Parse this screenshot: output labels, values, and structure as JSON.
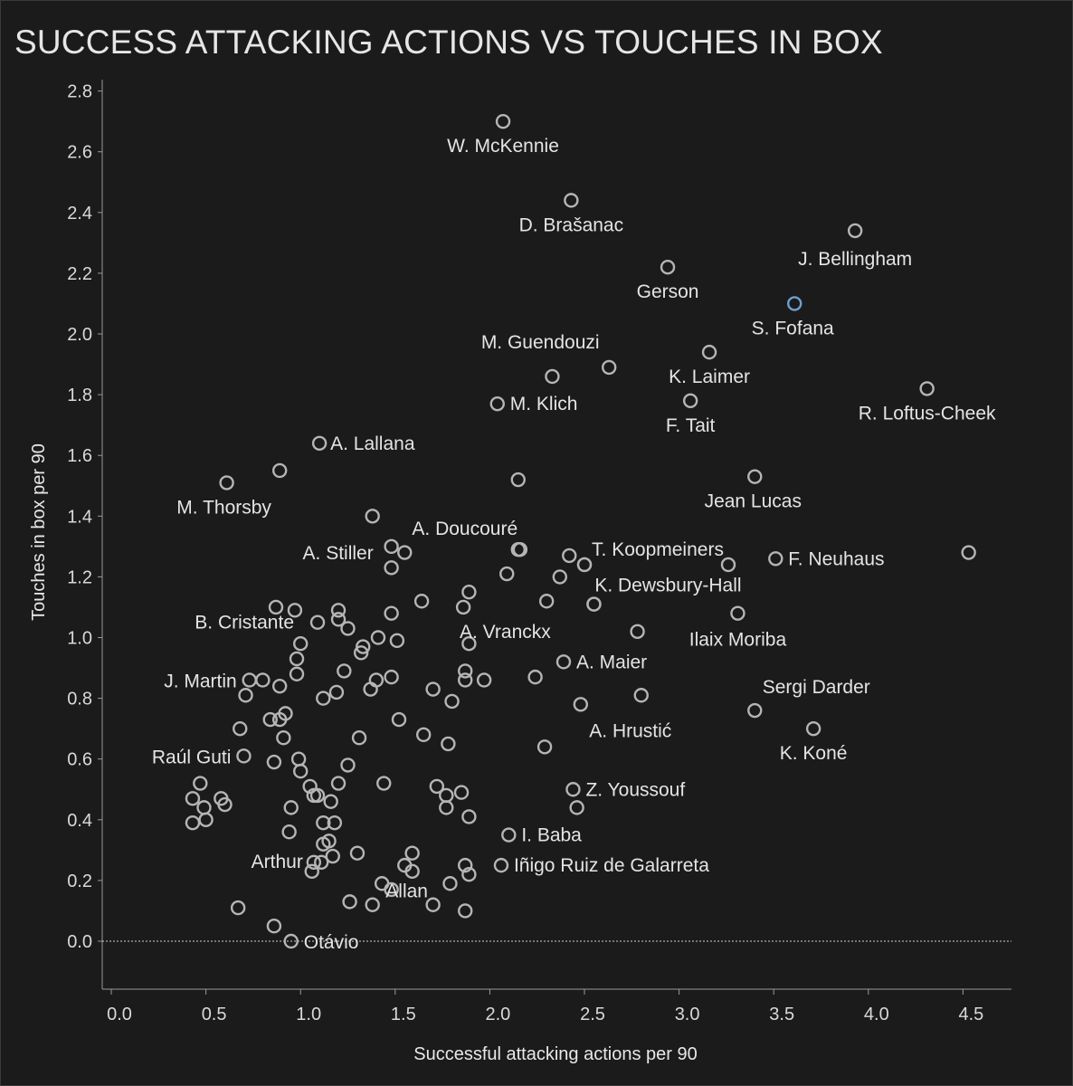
{
  "chart_data": {
    "type": "scatter",
    "title": "SUCCESS ATTACKING ACTIONS VS TOUCHES IN BOX",
    "xlabel": "Successful attacking actions per 90",
    "ylabel": "Touches in box per 90",
    "xlim": [
      -0.05,
      4.75
    ],
    "ylim": [
      -0.16,
      2.86
    ],
    "xticks": [
      "0.0",
      "0.5",
      "1.0",
      "1.5",
      "2.0",
      "2.5",
      "3.0",
      "3.5",
      "4.0",
      "4.5"
    ],
    "yticks": [
      "0.0",
      "0.2",
      "0.4",
      "0.6",
      "0.8",
      "1.0",
      "1.2",
      "1.4",
      "1.6",
      "1.8",
      "2.0",
      "2.2",
      "2.4",
      "2.6",
      "2.8"
    ],
    "reference_line": {
      "y": 0.0,
      "style": "dotted"
    },
    "colors": {
      "point": "#b5b5b5",
      "highlight": "#6f9ed2",
      "background": "#1b1b1b",
      "text": "#e4e4e4"
    },
    "labeled_points": [
      {
        "name": "W. McKennie",
        "x": 2.07,
        "y": 2.7
      },
      {
        "name": "D. Brašanac",
        "x": 2.43,
        "y": 2.44
      },
      {
        "name": "J. Bellingham",
        "x": 3.93,
        "y": 2.34
      },
      {
        "name": "Gerson",
        "x": 2.94,
        "y": 2.22
      },
      {
        "name": "S. Fofana",
        "x": 3.61,
        "y": 2.1,
        "highlight": true
      },
      {
        "name": "M. Guendouzi",
        "x": 2.63,
        "y": 1.89
      },
      {
        "name": "K. Laimer",
        "x": 3.16,
        "y": 1.94
      },
      {
        "name": "R. Loftus-Cheek",
        "x": 4.31,
        "y": 1.82
      },
      {
        "name": "M. Klich",
        "x": 2.04,
        "y": 1.77
      },
      {
        "name": "F. Tait",
        "x": 3.06,
        "y": 1.78
      },
      {
        "name": "A. Lallana",
        "x": 1.1,
        "y": 1.64
      },
      {
        "name": "M. Thorsby",
        "x": 0.61,
        "y": 1.51
      },
      {
        "name": "Jean Lucas",
        "x": 3.4,
        "y": 1.53
      },
      {
        "name": "A. Doucouré",
        "x": 2.15,
        "y": 1.29
      },
      {
        "name": "A. Stiller",
        "x": 1.48,
        "y": 1.3
      },
      {
        "name": "T. Koopmeiners",
        "x": 2.5,
        "y": 1.24
      },
      {
        "name": "F. Neuhaus",
        "x": 3.51,
        "y": 1.26
      },
      {
        "name": "K. Dewsbury-Hall",
        "x": 2.55,
        "y": 1.11
      },
      {
        "name": "A. Vranckx",
        "x": 1.89,
        "y": 0.98
      },
      {
        "name": "Ilaix Moriba",
        "x": 3.31,
        "y": 1.08
      },
      {
        "name": "B. Cristante",
        "x": 1.09,
        "y": 1.05
      },
      {
        "name": "A. Maier",
        "x": 2.39,
        "y": 0.92
      },
      {
        "name": "J. Martin",
        "x": 0.73,
        "y": 0.86
      },
      {
        "name": "Sergi Darder",
        "x": 3.4,
        "y": 0.76
      },
      {
        "name": "A. Hrustić",
        "x": 2.48,
        "y": 0.78
      },
      {
        "name": "K. Koné",
        "x": 3.71,
        "y": 0.7
      },
      {
        "name": "Raúl Guti",
        "x": 0.7,
        "y": 0.61
      },
      {
        "name": "Z. Youssouf",
        "x": 2.44,
        "y": 0.5
      },
      {
        "name": "I. Baba",
        "x": 2.1,
        "y": 0.35
      },
      {
        "name": "Arthur",
        "x": 1.07,
        "y": 0.26
      },
      {
        "name": "Iñigo Ruiz de Galarreta",
        "x": 2.06,
        "y": 0.25
      },
      {
        "name": "Allan",
        "x": 1.59,
        "y": 0.29
      },
      {
        "name": "Otávio",
        "x": 0.95,
        "y": 0.0
      }
    ],
    "unlabeled_points": [
      [
        4.53,
        1.28
      ],
      [
        2.15,
        1.52
      ],
      [
        0.89,
        1.55
      ],
      [
        1.38,
        1.4
      ],
      [
        2.33,
        1.86
      ],
      [
        1.48,
        1.23
      ],
      [
        1.55,
        1.28
      ],
      [
        2.16,
        1.29
      ],
      [
        2.42,
        1.27
      ],
      [
        2.09,
        1.21
      ],
      [
        2.37,
        1.2
      ],
      [
        2.5,
        1.24
      ],
      [
        3.26,
        1.24
      ],
      [
        1.64,
        1.12
      ],
      [
        1.86,
        1.1
      ],
      [
        1.89,
        1.15
      ],
      [
        2.3,
        1.12
      ],
      [
        2.55,
        1.11
      ],
      [
        0.87,
        1.1
      ],
      [
        0.97,
        1.09
      ],
      [
        1.2,
        1.09
      ],
      [
        1.2,
        1.06
      ],
      [
        1.25,
        1.03
      ],
      [
        1.48,
        1.08
      ],
      [
        2.78,
        1.02
      ],
      [
        1.41,
        1.0
      ],
      [
        1.51,
        0.99
      ],
      [
        1.0,
        0.98
      ],
      [
        1.33,
        0.97
      ],
      [
        1.32,
        0.95
      ],
      [
        0.98,
        0.93
      ],
      [
        1.23,
        0.89
      ],
      [
        0.98,
        0.88
      ],
      [
        1.4,
        0.86
      ],
      [
        1.48,
        0.87
      ],
      [
        1.37,
        0.83
      ],
      [
        1.19,
        0.82
      ],
      [
        1.12,
        0.8
      ],
      [
        0.89,
        0.84
      ],
      [
        0.8,
        0.86
      ],
      [
        0.71,
        0.81
      ],
      [
        1.7,
        0.83
      ],
      [
        1.87,
        0.89
      ],
      [
        1.87,
        0.86
      ],
      [
        1.97,
        0.86
      ],
      [
        2.24,
        0.87
      ],
      [
        1.8,
        0.79
      ],
      [
        2.8,
        0.81
      ],
      [
        0.84,
        0.73
      ],
      [
        0.89,
        0.73
      ],
      [
        0.92,
        0.75
      ],
      [
        0.68,
        0.7
      ],
      [
        1.52,
        0.73
      ],
      [
        0.91,
        0.67
      ],
      [
        1.31,
        0.67
      ],
      [
        1.65,
        0.68
      ],
      [
        1.78,
        0.65
      ],
      [
        2.29,
        0.64
      ],
      [
        0.86,
        0.59
      ],
      [
        0.99,
        0.6
      ],
      [
        1.0,
        0.56
      ],
      [
        1.25,
        0.58
      ],
      [
        0.47,
        0.52
      ],
      [
        0.43,
        0.47
      ],
      [
        0.49,
        0.44
      ],
      [
        0.43,
        0.39
      ],
      [
        0.5,
        0.4
      ],
      [
        0.58,
        0.47
      ],
      [
        0.6,
        0.45
      ],
      [
        0.95,
        0.44
      ],
      [
        1.05,
        0.51
      ],
      [
        1.07,
        0.48
      ],
      [
        1.09,
        0.48
      ],
      [
        1.16,
        0.46
      ],
      [
        1.2,
        0.52
      ],
      [
        1.44,
        0.52
      ],
      [
        1.72,
        0.51
      ],
      [
        1.77,
        0.48
      ],
      [
        1.85,
        0.49
      ],
      [
        1.77,
        0.44
      ],
      [
        1.89,
        0.41
      ],
      [
        2.46,
        0.44
      ],
      [
        0.94,
        0.36
      ],
      [
        1.12,
        0.39
      ],
      [
        1.18,
        0.39
      ],
      [
        1.12,
        0.32
      ],
      [
        1.15,
        0.33
      ],
      [
        1.17,
        0.28
      ],
      [
        1.3,
        0.29
      ],
      [
        1.11,
        0.26
      ],
      [
        1.06,
        0.23
      ],
      [
        1.55,
        0.25
      ],
      [
        1.59,
        0.23
      ],
      [
        1.87,
        0.25
      ],
      [
        1.89,
        0.22
      ],
      [
        1.79,
        0.19
      ],
      [
        1.43,
        0.19
      ],
      [
        1.48,
        0.17
      ],
      [
        1.26,
        0.13
      ],
      [
        1.38,
        0.12
      ],
      [
        1.7,
        0.12
      ],
      [
        0.67,
        0.11
      ],
      [
        1.87,
        0.1
      ],
      [
        0.86,
        0.05
      ]
    ]
  }
}
